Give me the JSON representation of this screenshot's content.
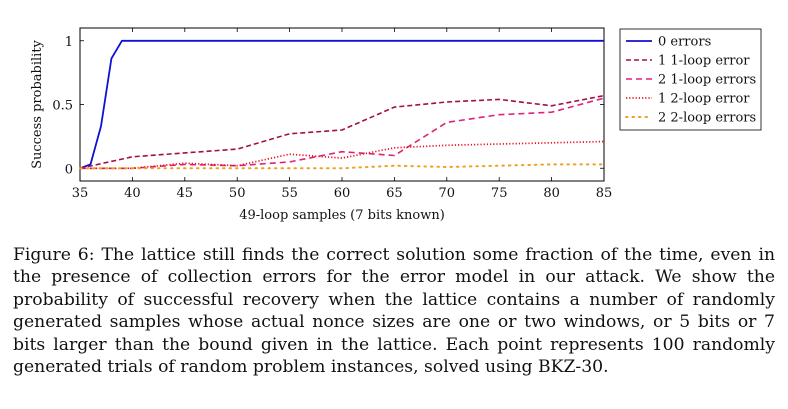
{
  "chart_data": {
    "type": "line",
    "xlabel": "49-loop samples (7 bits known)",
    "ylabel": "Success probability",
    "xlim": [
      35,
      85
    ],
    "ylim": [
      -0.1,
      1.1
    ],
    "xticks": [
      35,
      40,
      45,
      50,
      55,
      60,
      65,
      70,
      75,
      80,
      85
    ],
    "yticks": [
      0,
      0.5,
      1
    ],
    "ytick_labels": [
      "0",
      "0.5",
      "1"
    ],
    "grid": false,
    "legend_position": "outside-right",
    "series": [
      {
        "name": "0 errors",
        "color": "#1010d0",
        "style": "solid",
        "x": [
          35,
          36,
          37,
          38,
          39,
          40,
          45,
          50,
          55,
          60,
          65,
          70,
          75,
          80,
          85
        ],
        "y": [
          0,
          0.03,
          0.33,
          0.86,
          1,
          1,
          1,
          1,
          1,
          1,
          1,
          1,
          1,
          1,
          1
        ]
      },
      {
        "name": "1 1-loop error",
        "color": "#a0104a",
        "style": "dashed",
        "x": [
          35,
          40,
          45,
          50,
          55,
          60,
          65,
          70,
          75,
          80,
          85
        ],
        "y": [
          0,
          0.09,
          0.12,
          0.15,
          0.27,
          0.3,
          0.48,
          0.52,
          0.54,
          0.49,
          0.57
        ]
      },
      {
        "name": "2 1-loop errors",
        "color": "#e0207a",
        "style": "dashed-long",
        "x": [
          35,
          40,
          45,
          50,
          55,
          60,
          65,
          70,
          75,
          80,
          85
        ],
        "y": [
          0,
          0,
          0.03,
          0.02,
          0.05,
          0.13,
          0.1,
          0.36,
          0.42,
          0.44,
          0.55
        ]
      },
      {
        "name": "1 2-loop error",
        "color": "#e8101a",
        "style": "dotted",
        "x": [
          35,
          40,
          45,
          50,
          55,
          60,
          65,
          70,
          75,
          80,
          85
        ],
        "y": [
          0,
          0,
          0.04,
          0.02,
          0.11,
          0.08,
          0.16,
          0.18,
          0.19,
          0.2,
          0.21
        ]
      },
      {
        "name": "2 2-loop errors",
        "color": "#f0a020",
        "style": "dotted-sparse",
        "x": [
          35,
          40,
          45,
          50,
          55,
          60,
          65,
          70,
          75,
          80,
          85
        ],
        "y": [
          0,
          0,
          0,
          0,
          0,
          0,
          0.02,
          0.01,
          0.02,
          0.03,
          0.03
        ]
      }
    ]
  },
  "caption": {
    "label": "Figure 6:",
    "text": "The lattice still finds the correct solution some fraction of the time, even in the presence of collection errors for the error model in our attack. We show the probability of successful recovery when the lattice contains a number of randomly generated samples whose actual nonce sizes are one or two windows, or 5 bits or 7 bits larger than the bound given in the lattice. Each point represents 100 randomly generated trials of random problem instances, solved using BKZ-30."
  }
}
